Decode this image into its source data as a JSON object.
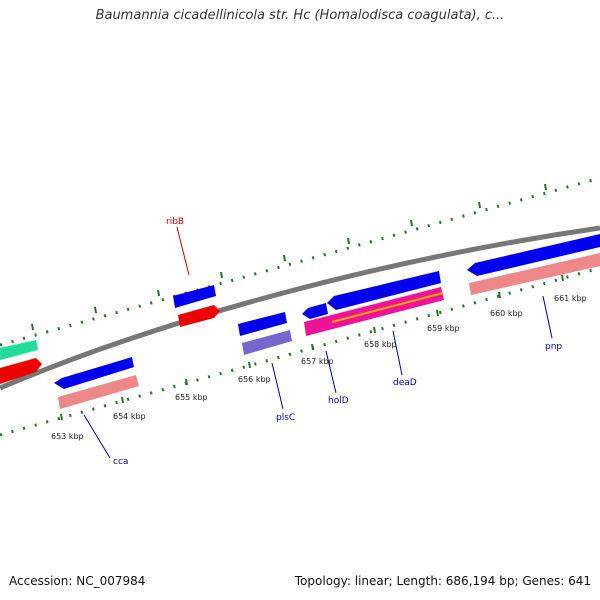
{
  "title": "Baumannia cicadellinicola str. Hc (Homalodisca coagulata), c...",
  "footer": {
    "accession": "Accession: NC_007984",
    "info": "Topology: linear; Length: 686,194 bp; Genes: 641"
  },
  "ticks": [
    "653 kbp",
    "654 kbp",
    "655 kbp",
    "656 kbp",
    "657 kbp",
    "658 kbp",
    "659 kbp",
    "660 kbp",
    "661 kbp"
  ],
  "genes": [
    {
      "name": "ribB",
      "color": "#cc0000"
    },
    {
      "name": "cca",
      "color": "#0000aa"
    },
    {
      "name": "plsC",
      "color": "#0000aa"
    },
    {
      "name": "holD",
      "color": "#0000aa"
    },
    {
      "name": "deaD",
      "color": "#0000aa"
    },
    {
      "name": "pnp",
      "color": "#0000aa"
    }
  ],
  "colors": {
    "backbone": "#808080",
    "cds": "#0000ee",
    "rrna_red": "#ee0000",
    "trna_green": "#22dd99",
    "salmon": "#ee8888",
    "magenta": "#ee1199",
    "orange": "#ffaa00",
    "lavender": "#7766cc",
    "tick_green": "#227722"
  }
}
